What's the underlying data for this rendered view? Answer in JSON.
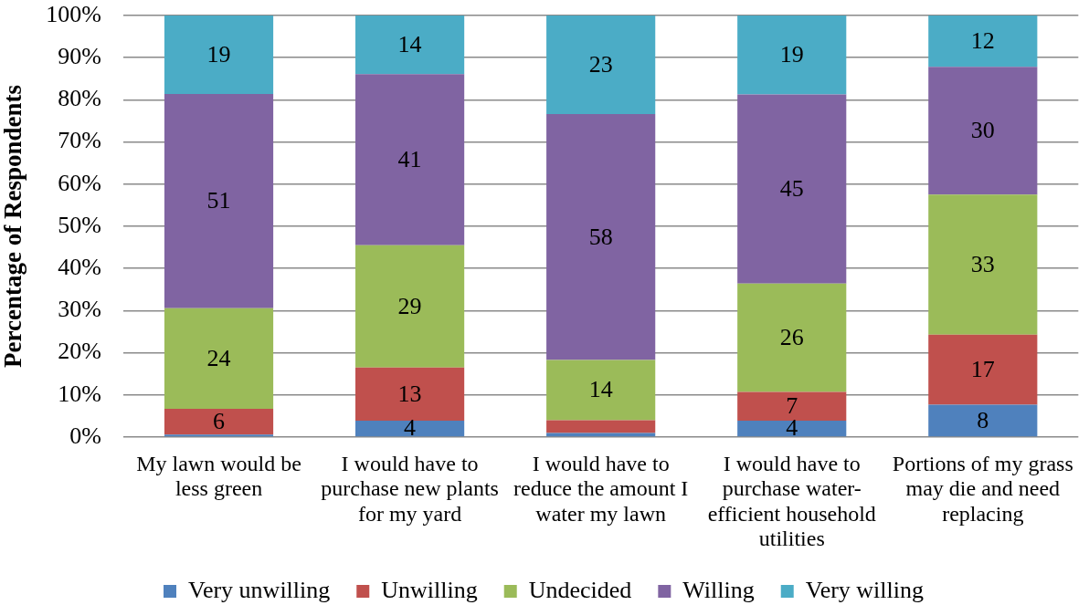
{
  "chart_data": {
    "type": "bar",
    "stacked": true,
    "ylabel": "Percentage of Respondents",
    "categories": [
      "My lawn would be less green",
      "I would have to purchase new plants for my yard",
      "I would have to reduce the amount I water my lawn",
      "I would have to purchase water-efficient household utilities",
      "Portions of my grass may die and need replacing"
    ],
    "series": [
      {
        "name": "Very unwilling",
        "color": "#4f81bd",
        "values": [
          0.6,
          3.9,
          1.0,
          3.9,
          7.7
        ],
        "value_labels": [
          null,
          "4",
          null,
          "4",
          "8"
        ]
      },
      {
        "name": "Unwilling",
        "color": "#c0504d",
        "values": [
          6.1,
          12.6,
          3.0,
          6.8,
          16.6
        ],
        "value_labels": [
          "6",
          "13",
          null,
          "7",
          "17"
        ]
      },
      {
        "name": "Undecided",
        "color": "#9bbb59",
        "values": [
          23.9,
          29.0,
          14.3,
          25.7,
          33.2
        ],
        "value_labels": [
          "24",
          "29",
          "14",
          "26",
          "33"
        ]
      },
      {
        "name": "Willing",
        "color": "#8064a2",
        "values": [
          50.8,
          40.6,
          58.3,
          44.9,
          30.3
        ],
        "value_labels": [
          "51",
          "41",
          "58",
          "45",
          "30"
        ]
      },
      {
        "name": "Very willing",
        "color": "#4bacc6",
        "values": [
          18.6,
          13.9,
          23.4,
          18.7,
          12.2
        ],
        "value_labels": [
          "19",
          "14",
          "23",
          "19",
          "12"
        ]
      }
    ],
    "ylim": [
      0,
      100
    ],
    "yticks": [
      {
        "value": 0,
        "label": "0%"
      },
      {
        "value": 10,
        "label": "10%"
      },
      {
        "value": 20,
        "label": "20%"
      },
      {
        "value": 30,
        "label": "30%"
      },
      {
        "value": 40,
        "label": "40%"
      },
      {
        "value": 50,
        "label": "50%"
      },
      {
        "value": 60,
        "label": "60%"
      },
      {
        "value": 70,
        "label": "70%"
      },
      {
        "value": 80,
        "label": "80%"
      },
      {
        "value": 90,
        "label": "90%"
      },
      {
        "value": 100,
        "label": "100%"
      }
    ],
    "grid": "y",
    "legend": "bottom"
  }
}
